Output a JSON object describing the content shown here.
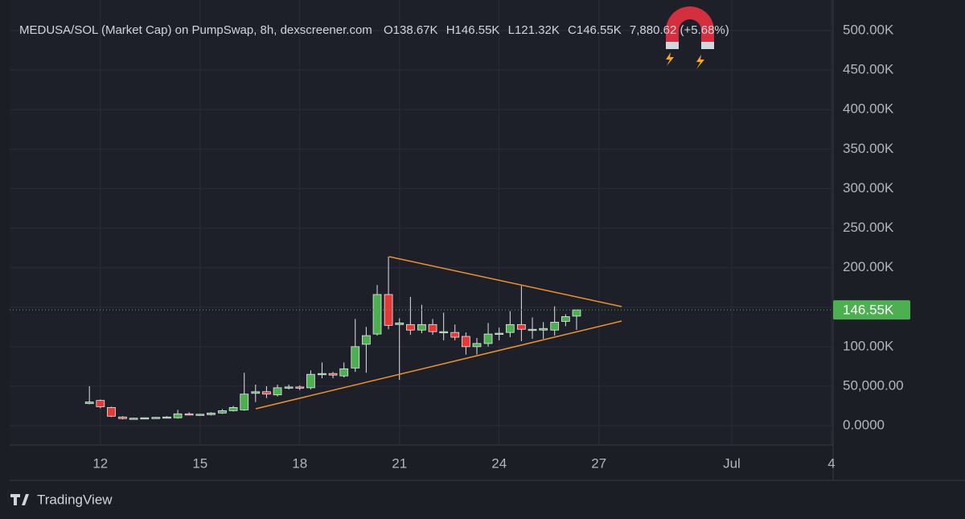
{
  "chart_data": {
    "type": "candlestick",
    "header": {
      "title": "MEDUSA/SOL (Market Cap) on PumpSwap, 8h, dexscreener.com",
      "ohlc": [
        {
          "key": "O",
          "text": "138.67K"
        },
        {
          "key": "H",
          "text": "146.55K"
        },
        {
          "key": "L",
          "text": "121.32K"
        },
        {
          "key": "C",
          "text": "146.55K"
        }
      ],
      "change": "7,880.62 (+5.68%)"
    },
    "x": [
      11.67,
      12,
      12.33,
      12.67,
      13,
      13.33,
      13.67,
      14,
      14.33,
      14.67,
      15,
      15.33,
      15.67,
      16,
      16.33,
      16.67,
      17,
      17.33,
      17.67,
      18,
      18.33,
      18.67,
      19,
      19.33,
      19.67,
      20,
      20.33,
      20.67,
      21,
      21.33,
      21.67,
      22,
      22.33,
      22.67,
      23,
      23.33,
      23.67,
      24,
      24.33,
      24.67,
      25,
      25.33,
      25.67,
      26,
      26.33
    ],
    "open": [
      28000,
      32000,
      23000,
      11000,
      9000,
      9000,
      10000,
      10500,
      10000,
      15000,
      14000,
      14000,
      16000,
      19000,
      20000,
      41000,
      43000,
      39000,
      48000,
      49000,
      48000,
      65000,
      66000,
      63000,
      73000,
      103000,
      116000,
      166000,
      128000,
      128000,
      121000,
      128000,
      119000,
      118000,
      113000,
      100000,
      104000,
      116000,
      118000,
      128000,
      121000,
      121000,
      121000,
      132000,
      138670
    ],
    "high": [
      50000,
      33000,
      24000,
      12000,
      10000,
      10500,
      11000,
      12000,
      20000,
      17000,
      15000,
      17000,
      21000,
      25000,
      67000,
      52000,
      50000,
      52000,
      52000,
      51000,
      70000,
      80000,
      68000,
      80000,
      135000,
      125000,
      178000,
      214000,
      136000,
      163000,
      153000,
      135000,
      143000,
      128000,
      118000,
      111000,
      130000,
      124000,
      145000,
      177000,
      137000,
      131000,
      151000,
      141000,
      146550
    ],
    "low": [
      27000,
      22000,
      11000,
      8000,
      8500,
      8500,
      9000,
      10000,
      9000,
      13000,
      13000,
      13000,
      15000,
      18000,
      19000,
      30000,
      35000,
      37000,
      46000,
      45000,
      46000,
      60000,
      60000,
      61000,
      68000,
      67000,
      114000,
      122000,
      58000,
      115000,
      117000,
      115000,
      108000,
      108000,
      90000,
      90000,
      100000,
      108000,
      112000,
      107000,
      110000,
      110000,
      114000,
      126000,
      121320
    ],
    "close": [
      30000,
      24000,
      12000,
      9000,
      9500,
      10000,
      10500,
      11000,
      15000,
      14000,
      14500,
      16000,
      19000,
      23000,
      40000,
      43000,
      40000,
      48000,
      49000,
      48000,
      65000,
      66000,
      64000,
      72000,
      100000,
      114000,
      166000,
      127000,
      130000,
      121000,
      128000,
      119000,
      119000,
      112000,
      100000,
      104000,
      116000,
      117000,
      128000,
      122000,
      122000,
      123000,
      131000,
      138000,
      146550
    ],
    "up_color": "#4caf50",
    "down_color": "#e53935",
    "xlim": [
      9.27,
      34.05
    ],
    "xticks": [
      12,
      15,
      18,
      21,
      24,
      27,
      {
        "value": 31,
        "label": "Jul"
      },
      {
        "value": 34,
        "label": "4"
      }
    ],
    "ylim": [
      -24400,
      538700
    ],
    "yticks": [
      {
        "value": 0,
        "label": "0.0000"
      },
      {
        "value": 50000,
        "label": "50,000.00"
      },
      {
        "value": 100000,
        "label": "100.00K"
      },
      {
        "value": 150000,
        "label": "150.00K"
      },
      {
        "value": 200000,
        "label": "200.00K"
      },
      {
        "value": 250000,
        "label": "250.00K"
      },
      {
        "value": 300000,
        "label": "300.00K"
      },
      {
        "value": 350000,
        "label": "350.00K"
      },
      {
        "value": 400000,
        "label": "400.00K"
      },
      {
        "value": 450000,
        "label": "450.00K"
      },
      {
        "value": 500000,
        "label": "500.00K"
      }
    ],
    "grid": true,
    "last_price": {
      "value": 146550,
      "label": "146.55K"
    },
    "watermark": "TradingView"
  }
}
